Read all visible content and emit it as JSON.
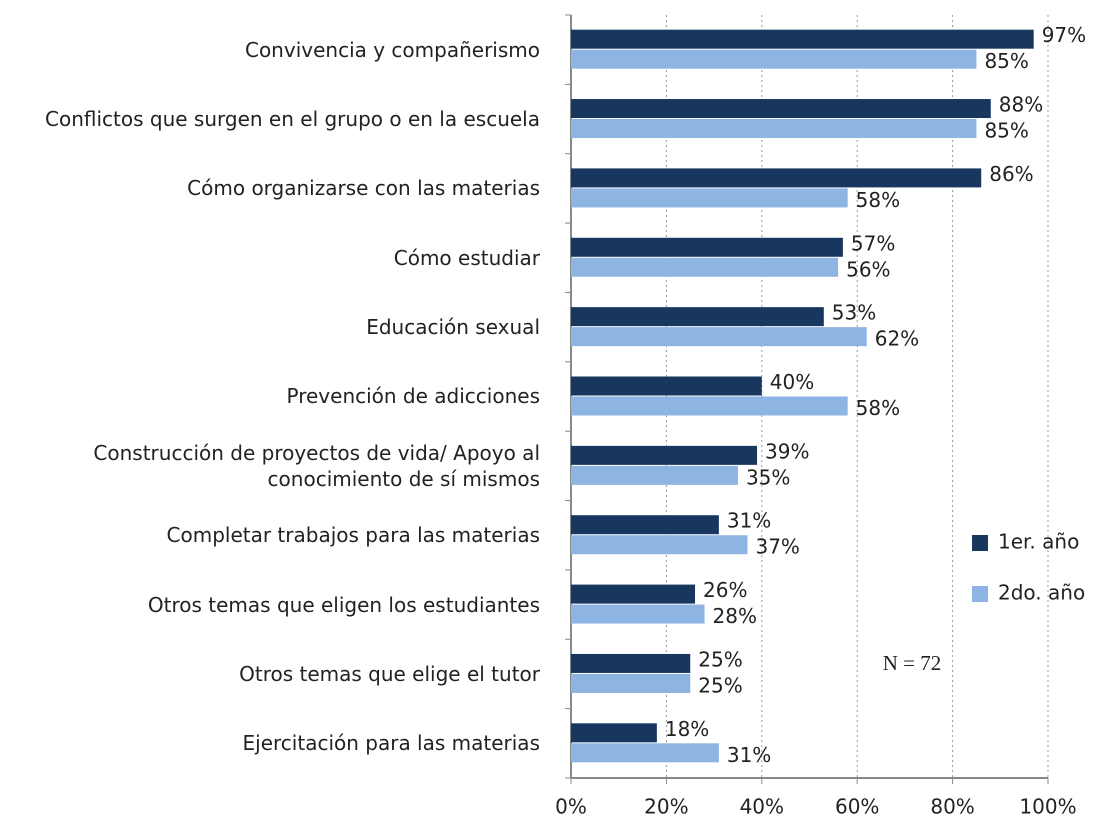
{
  "chart_data": {
    "type": "hbar",
    "categories": [
      "Convivencia y compañerismo",
      "Conflictos que surgen en el grupo o en la escuela",
      "Cómo organizarse con las materias",
      "Cómo estudiar",
      "Educación sexual",
      "Prevención de adicciones",
      "Construcción de proyectos de vida/ Apoyo al conocimiento de sí mismos",
      "Completar trabajos para las materias",
      "Otros temas que eligen los estudiantes",
      "Otros temas que elige el tutor",
      "Ejercitación para las materias"
    ],
    "series": [
      {
        "name": "1er. año",
        "color": "#17375e",
        "values": [
          97,
          88,
          86,
          57,
          53,
          40,
          39,
          31,
          26,
          25,
          18
        ],
        "value_labels": [
          "97%",
          "88%",
          "86%",
          "57%",
          "53%",
          "40%",
          "39%",
          "31%",
          "26%",
          "25%",
          "18%"
        ]
      },
      {
        "name": "2do. año",
        "color": "#8db4e2",
        "values": [
          85,
          85,
          58,
          56,
          62,
          58,
          35,
          37,
          28,
          25,
          31
        ],
        "value_labels": [
          "85%",
          "85%",
          "58%",
          "56%",
          "62%",
          "58%",
          "35%",
          "37%",
          "28%",
          "25%",
          "31%"
        ]
      }
    ],
    "xlim": [
      0,
      100
    ],
    "xticks": [
      {
        "value": 0,
        "label": "0%"
      },
      {
        "value": 20,
        "label": "20%"
      },
      {
        "value": 40,
        "label": "40%"
      },
      {
        "value": 60,
        "label": "60%"
      },
      {
        "value": 80,
        "label": "80%"
      },
      {
        "value": 100,
        "label": "100%"
      }
    ],
    "grid": true,
    "legend": "right",
    "annotation": "N = 72"
  }
}
